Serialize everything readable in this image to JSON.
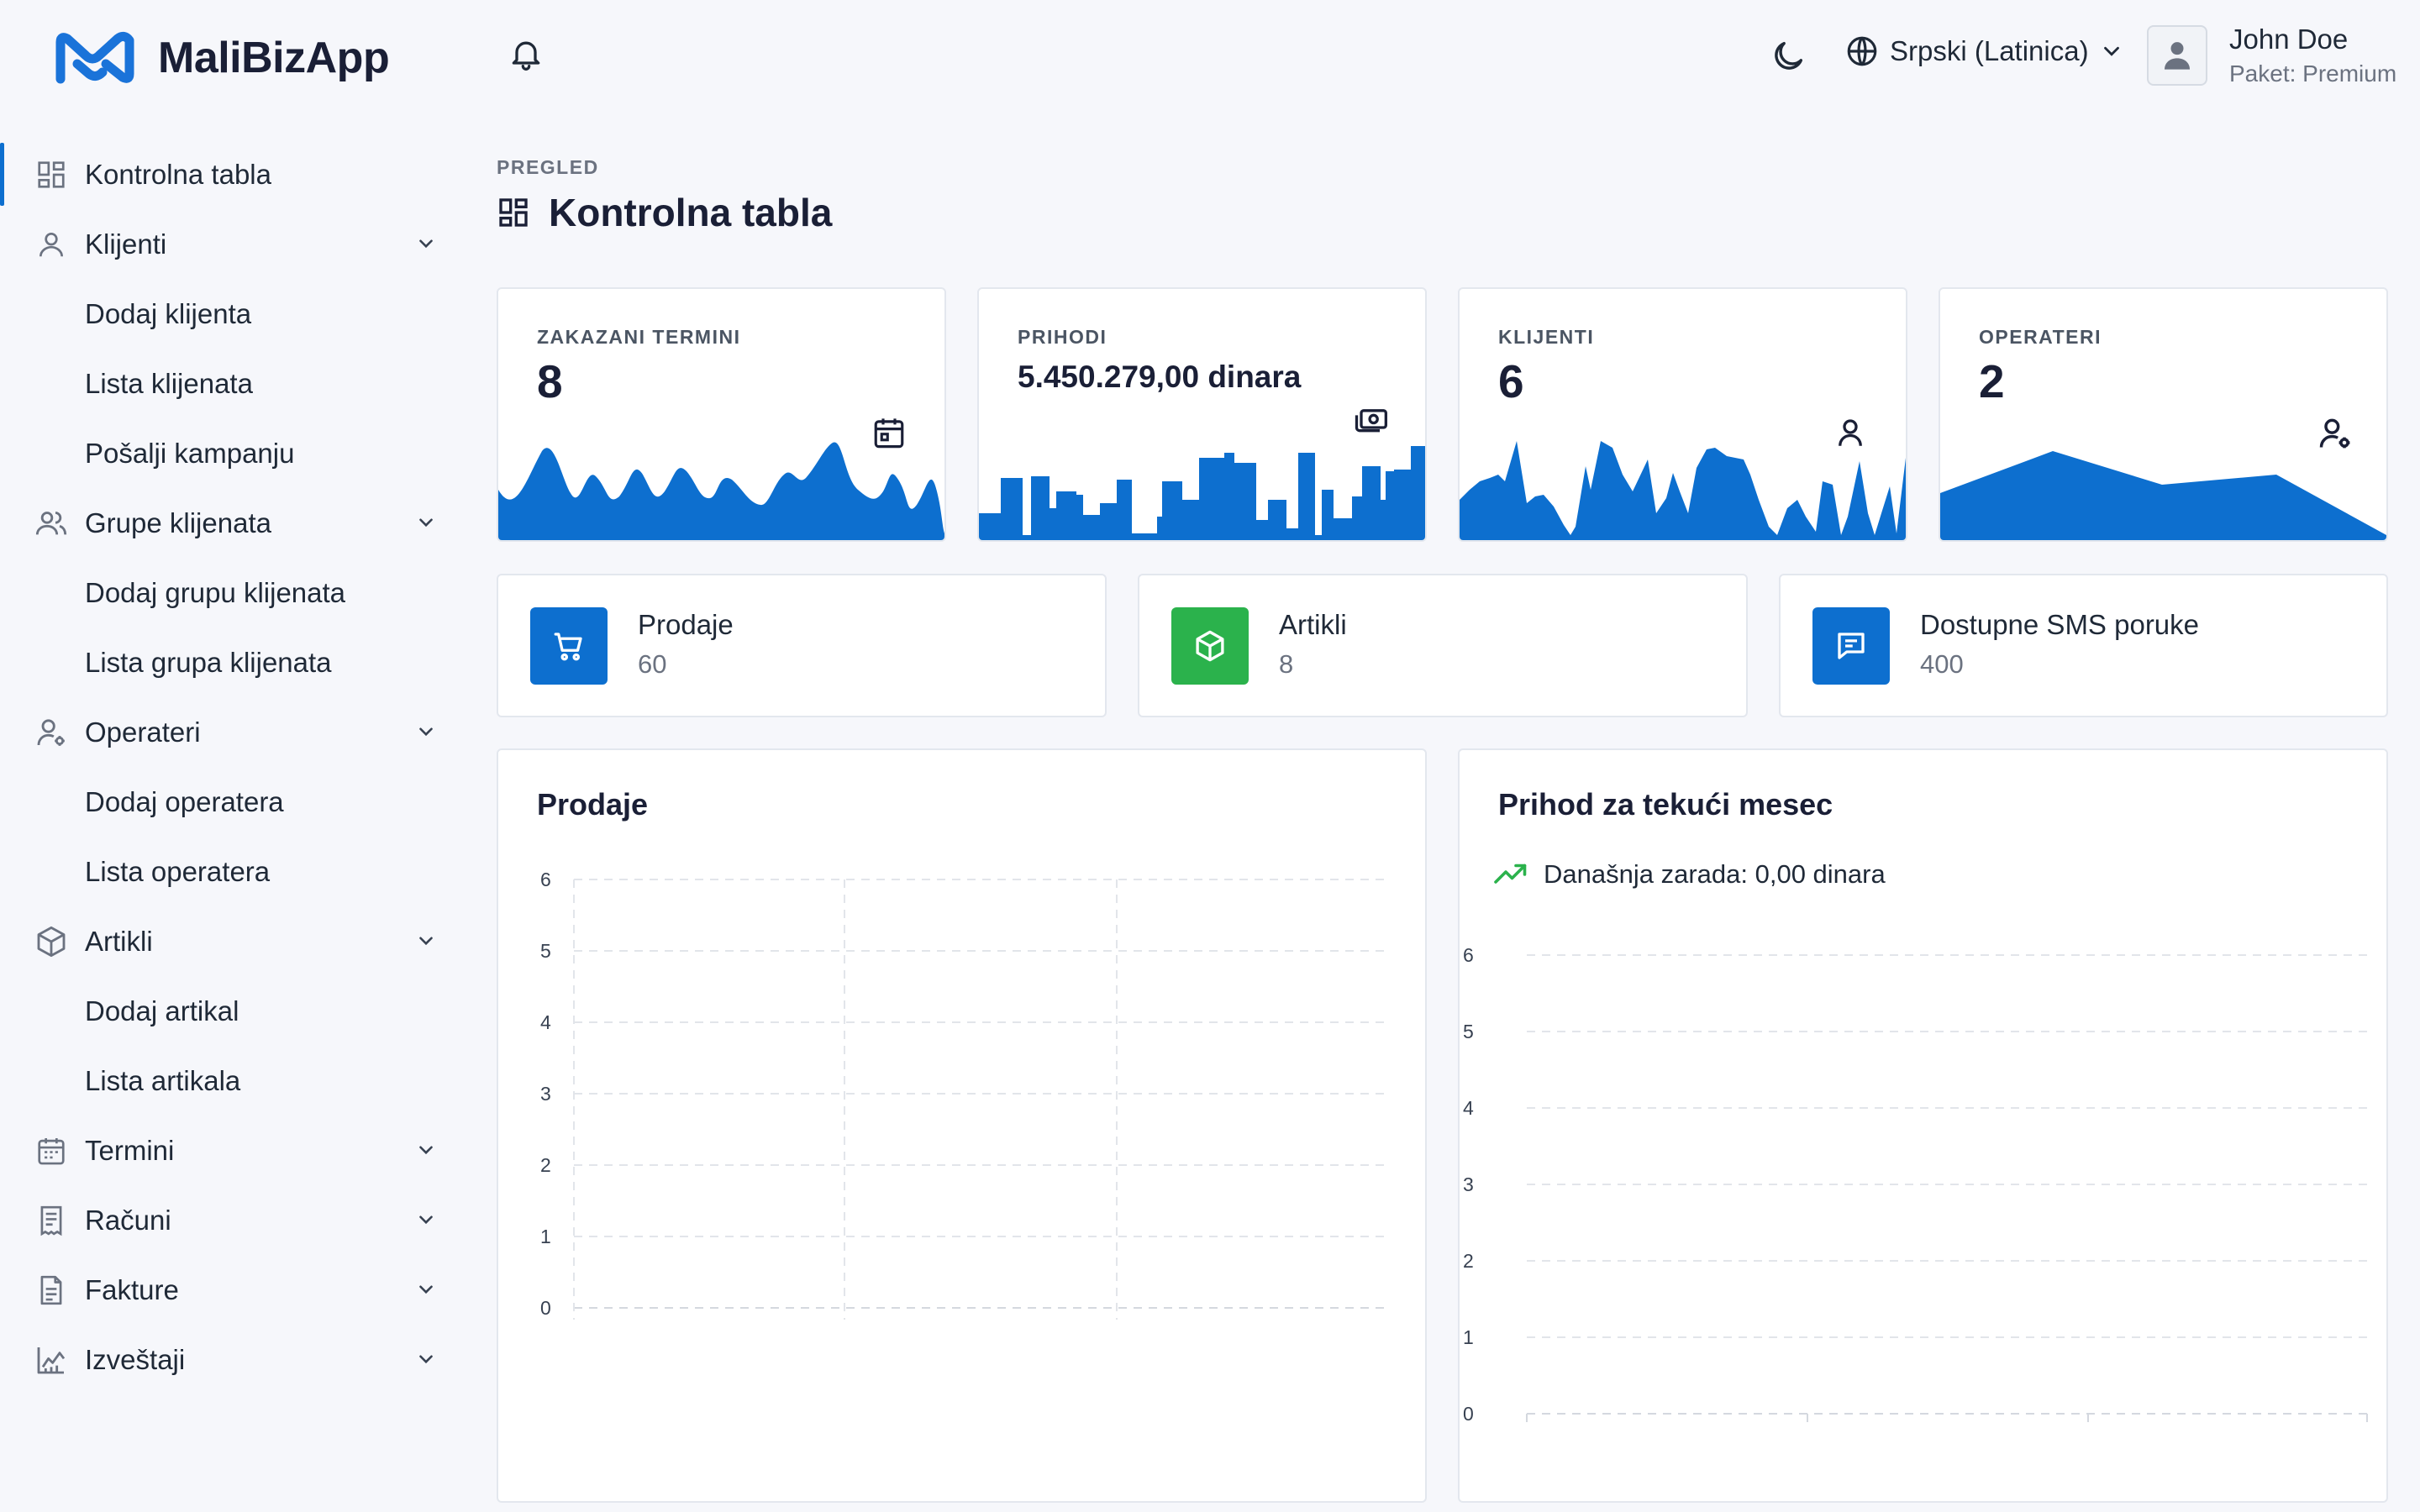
{
  "header": {
    "logo_text": "MaliBizApp",
    "language": "Srpski (Latinica)",
    "user_name": "John Doe",
    "user_plan": "Paket: Premium"
  },
  "sidebar": {
    "items": [
      {
        "label": "Kontrolna tabla",
        "icon": "dashboard-icon",
        "active": true
      },
      {
        "label": "Klijenti",
        "icon": "user-icon",
        "sub": [
          "Dodaj klijenta",
          "Lista klijenata",
          "Pošalji kampanju"
        ]
      },
      {
        "label": "Grupe klijenata",
        "icon": "users-icon",
        "sub": [
          "Dodaj grupu klijenata",
          "Lista grupa klijenata"
        ]
      },
      {
        "label": "Operateri",
        "icon": "user-cog-icon",
        "sub": [
          "Dodaj operatera",
          "Lista operatera"
        ]
      },
      {
        "label": "Artikli",
        "icon": "box-icon",
        "sub": [
          "Dodaj artikal",
          "Lista artikala"
        ]
      },
      {
        "label": "Termini",
        "icon": "calendar-icon"
      },
      {
        "label": "Računi",
        "icon": "receipt-icon"
      },
      {
        "label": "Fakture",
        "icon": "invoice-icon"
      },
      {
        "label": "Izveštaji",
        "icon": "report-chart-icon"
      }
    ]
  },
  "page": {
    "breadcrumb": "PREGLED",
    "title": "Kontrolna tabla"
  },
  "stats": [
    {
      "label": "ZAKAZANI TERMINI",
      "value": "8",
      "icon": "calendar-icon"
    },
    {
      "label": "PRIHODI",
      "value": "5.450.279,00 dinara",
      "icon": "money-icon"
    },
    {
      "label": "KLIJENTI",
      "value": "6",
      "icon": "user-icon"
    },
    {
      "label": "OPERATERI",
      "value": "2",
      "icon": "user-cog-icon"
    }
  ],
  "info": [
    {
      "title": "Prodaje",
      "value": "60",
      "color": "#0d6fcf",
      "icon": "cart-icon"
    },
    {
      "title": "Artikli",
      "value": "8",
      "color": "#2bb24c",
      "icon": "box-icon"
    },
    {
      "title": "Dostupne SMS poruke",
      "value": "400",
      "color": "#0d6fcf",
      "icon": "message-icon"
    }
  ],
  "colors": {
    "accent": "#0d6fcf",
    "green": "#2bb24c"
  },
  "chart_data": [
    {
      "type": "bar",
      "title": "Prodaje",
      "categories": [],
      "values": [],
      "ylim": [
        0,
        6
      ],
      "yticks": [
        "6",
        "5",
        "4",
        "3",
        "2",
        "1",
        "0"
      ],
      "grid": true
    },
    {
      "type": "line",
      "title": "Prihod za tekući mesec",
      "subtitle": "Današnja zarada: 0,00 dinara",
      "x": [],
      "values": [],
      "ylim": [
        0,
        6
      ],
      "yticks": [
        "6",
        "5",
        "4",
        "3",
        "2",
        "1",
        "0"
      ],
      "grid": true
    }
  ]
}
